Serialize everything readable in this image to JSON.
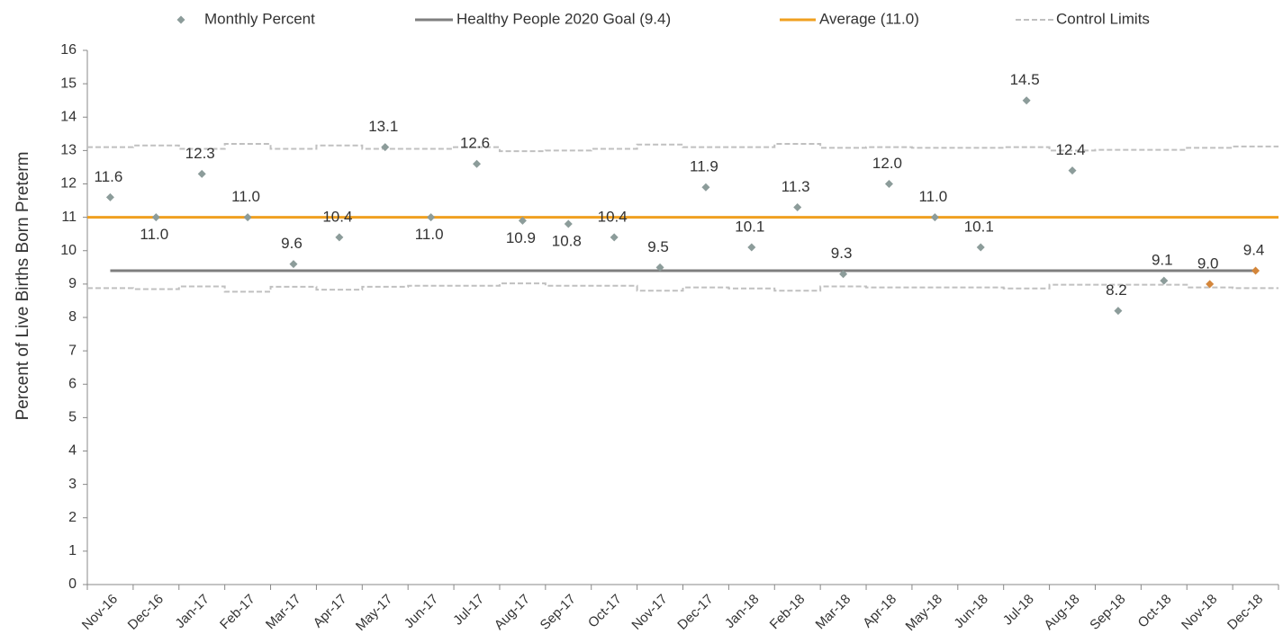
{
  "chart_data": {
    "type": "scatter",
    "y_label": "Percent of Live Births Born Preterm",
    "categories": [
      "Nov-16",
      "Dec-16",
      "Jan-17",
      "Feb-17",
      "Mar-17",
      "Apr-17",
      "May-17",
      "Jun-17",
      "Jul-17",
      "Aug-17",
      "Sep-17",
      "Oct-17",
      "Nov-17",
      "Dec-17",
      "Jan-18",
      "Feb-18",
      "Mar-18",
      "Apr-18",
      "May-18",
      "Jun-18",
      "Jul-18",
      "Aug-18",
      "Sep-18",
      "Oct-18",
      "Nov-18",
      "Dec-18"
    ],
    "series": [
      {
        "name": "Monthly Percent",
        "color": "#8c9c9a",
        "values": [
          11.6,
          11.0,
          12.3,
          11.0,
          9.6,
          10.4,
          13.1,
          11.0,
          12.6,
          10.9,
          10.8,
          10.4,
          9.5,
          11.9,
          10.1,
          11.3,
          9.3,
          12.0,
          11.0,
          10.1,
          14.5,
          12.4,
          8.2,
          9.1,
          9.0,
          9.4
        ],
        "value_labels": [
          "11.6",
          "11.0",
          "12.3",
          "11.0",
          "9.6",
          "10.4",
          "13.1",
          "11.0",
          "12.6",
          "10.9",
          "10.8",
          "10.4",
          "9.5",
          "11.9",
          "10.1",
          "11.3",
          "9.3",
          "12.0",
          "11.0",
          "10.1",
          "14.5",
          "12.4",
          "8.2",
          "9.1",
          "9.0",
          "9.4"
        ],
        "colors": [
          "#8c9c9a",
          "#8c9c9a",
          "#8c9c9a",
          "#8c9c9a",
          "#8c9c9a",
          "#8c9c9a",
          "#8c9c9a",
          "#8c9c9a",
          "#8c9c9a",
          "#8c9c9a",
          "#8c9c9a",
          "#8c9c9a",
          "#8c9c9a",
          "#8c9c9a",
          "#8c9c9a",
          "#8c9c9a",
          "#8c9c9a",
          "#8c9c9a",
          "#8c9c9a",
          "#8c9c9a",
          "#8c9c9a",
          "#8c9c9a",
          "#8c9c9a",
          "#8c9c9a",
          "#d4863a",
          "#d4863a"
        ]
      },
      {
        "name": "Healthy People 2020 Goal (9.4)",
        "color": "#7f7f7f",
        "value": 9.4
      },
      {
        "name": "Average (11.0)",
        "color": "#f0a020",
        "value": 11.0
      },
      {
        "name": "Control Limits",
        "color": "#c0c0c0",
        "upper": [
          13.1,
          13.15,
          13.05,
          13.2,
          13.05,
          13.15,
          13.05,
          13.05,
          13.1,
          12.98,
          13.0,
          13.05,
          13.18,
          13.1,
          13.1,
          13.2,
          13.08,
          13.1,
          13.08,
          13.08,
          13.1,
          13.0,
          13.02,
          13.02,
          13.08,
          13.12
        ],
        "lower": [
          8.88,
          8.85,
          8.93,
          8.77,
          8.92,
          8.83,
          8.92,
          8.95,
          8.95,
          9.02,
          8.95,
          8.95,
          8.8,
          8.9,
          8.87,
          8.8,
          8.93,
          8.9,
          8.9,
          8.9,
          8.87,
          8.98,
          8.98,
          8.98,
          8.9,
          8.88
        ]
      }
    ],
    "ylim": [
      0,
      16
    ],
    "yticks": [
      0,
      1,
      2,
      3,
      4,
      5,
      6,
      7,
      8,
      9,
      10,
      11,
      12,
      13,
      14,
      15,
      16
    ],
    "grid": false
  }
}
